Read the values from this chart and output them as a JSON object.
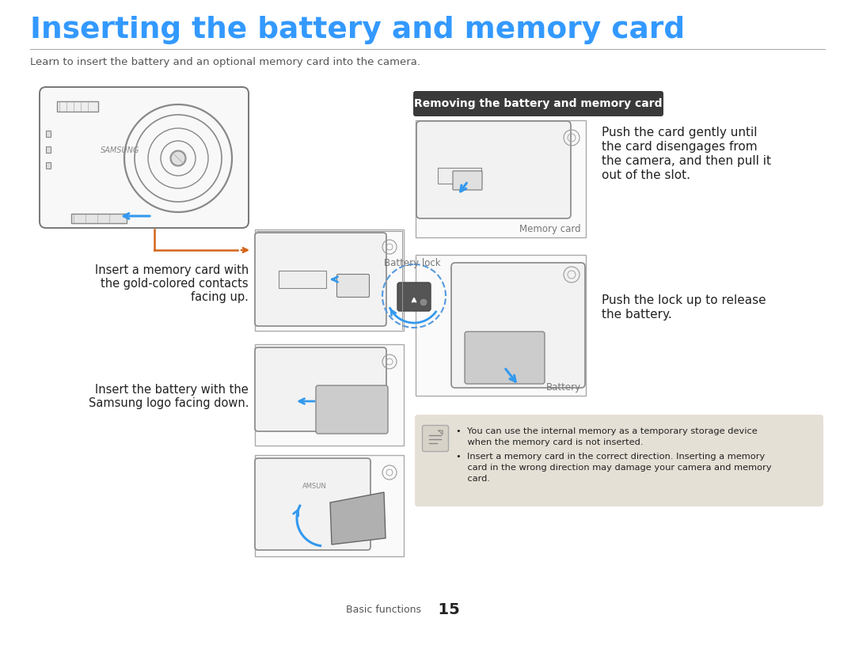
{
  "title": "Inserting the battery and memory card",
  "subtitle": "Learn to insert the battery and an optional memory card into the camera.",
  "title_color": "#3399FF",
  "subtitle_color": "#555555",
  "background_color": "#FFFFFF",
  "separator_color": "#888888",
  "page_footer_text": "Basic functions",
  "page_footer_num": "15",
  "left_caption1_line1": "Insert a memory card with",
  "left_caption1_line2": "the gold-colored contacts",
  "left_caption1_line3": "facing up.",
  "left_caption2_line1": "Insert the battery with the",
  "left_caption2_line2": "Samsung logo facing down.",
  "right_section_title": "Removing the battery and memory card",
  "right_caption1_line1": "Push the card gently until",
  "right_caption1_line2": "the card disengages from",
  "right_caption1_line3": "the camera, and then pull it",
  "right_caption1_line4": "out of the slot.",
  "right_caption2_line1": "Push the lock up to release",
  "right_caption2_line2": "the battery.",
  "memory_card_label": "Memory card",
  "battery_lock_label": "Battery lock",
  "battery_label": "Battery",
  "note_bullet1_line1": "•  You can use the internal memory as a temporary storage device",
  "note_bullet1_line2": "    when the memory card is not inserted.",
  "note_bullet2_line1": "•  Insert a memory card in the correct direction. Inserting a memory",
  "note_bullet2_line2": "    card in the wrong direction may damage your camera and memory",
  "note_bullet2_line3": "    card.",
  "note_bg_color": "#E5E0D5",
  "arrow_color_orange": "#D4641A",
  "arrow_color_blue": "#3399EE",
  "dashed_circle_color": "#5599DD",
  "border_color": "#AAAAAA",
  "text_color_dark": "#222222",
  "text_color_medium": "#555555",
  "text_color_light": "#777777",
  "right_title_bg": "#444444",
  "right_title_text": "#FFFFFF",
  "img_bg": "#FAFAFA",
  "img_line": "#999999",
  "img_fill_light": "#E8E8E8",
  "img_fill_mid": "#CCCCCC",
  "samsung_text_color": "#888888"
}
